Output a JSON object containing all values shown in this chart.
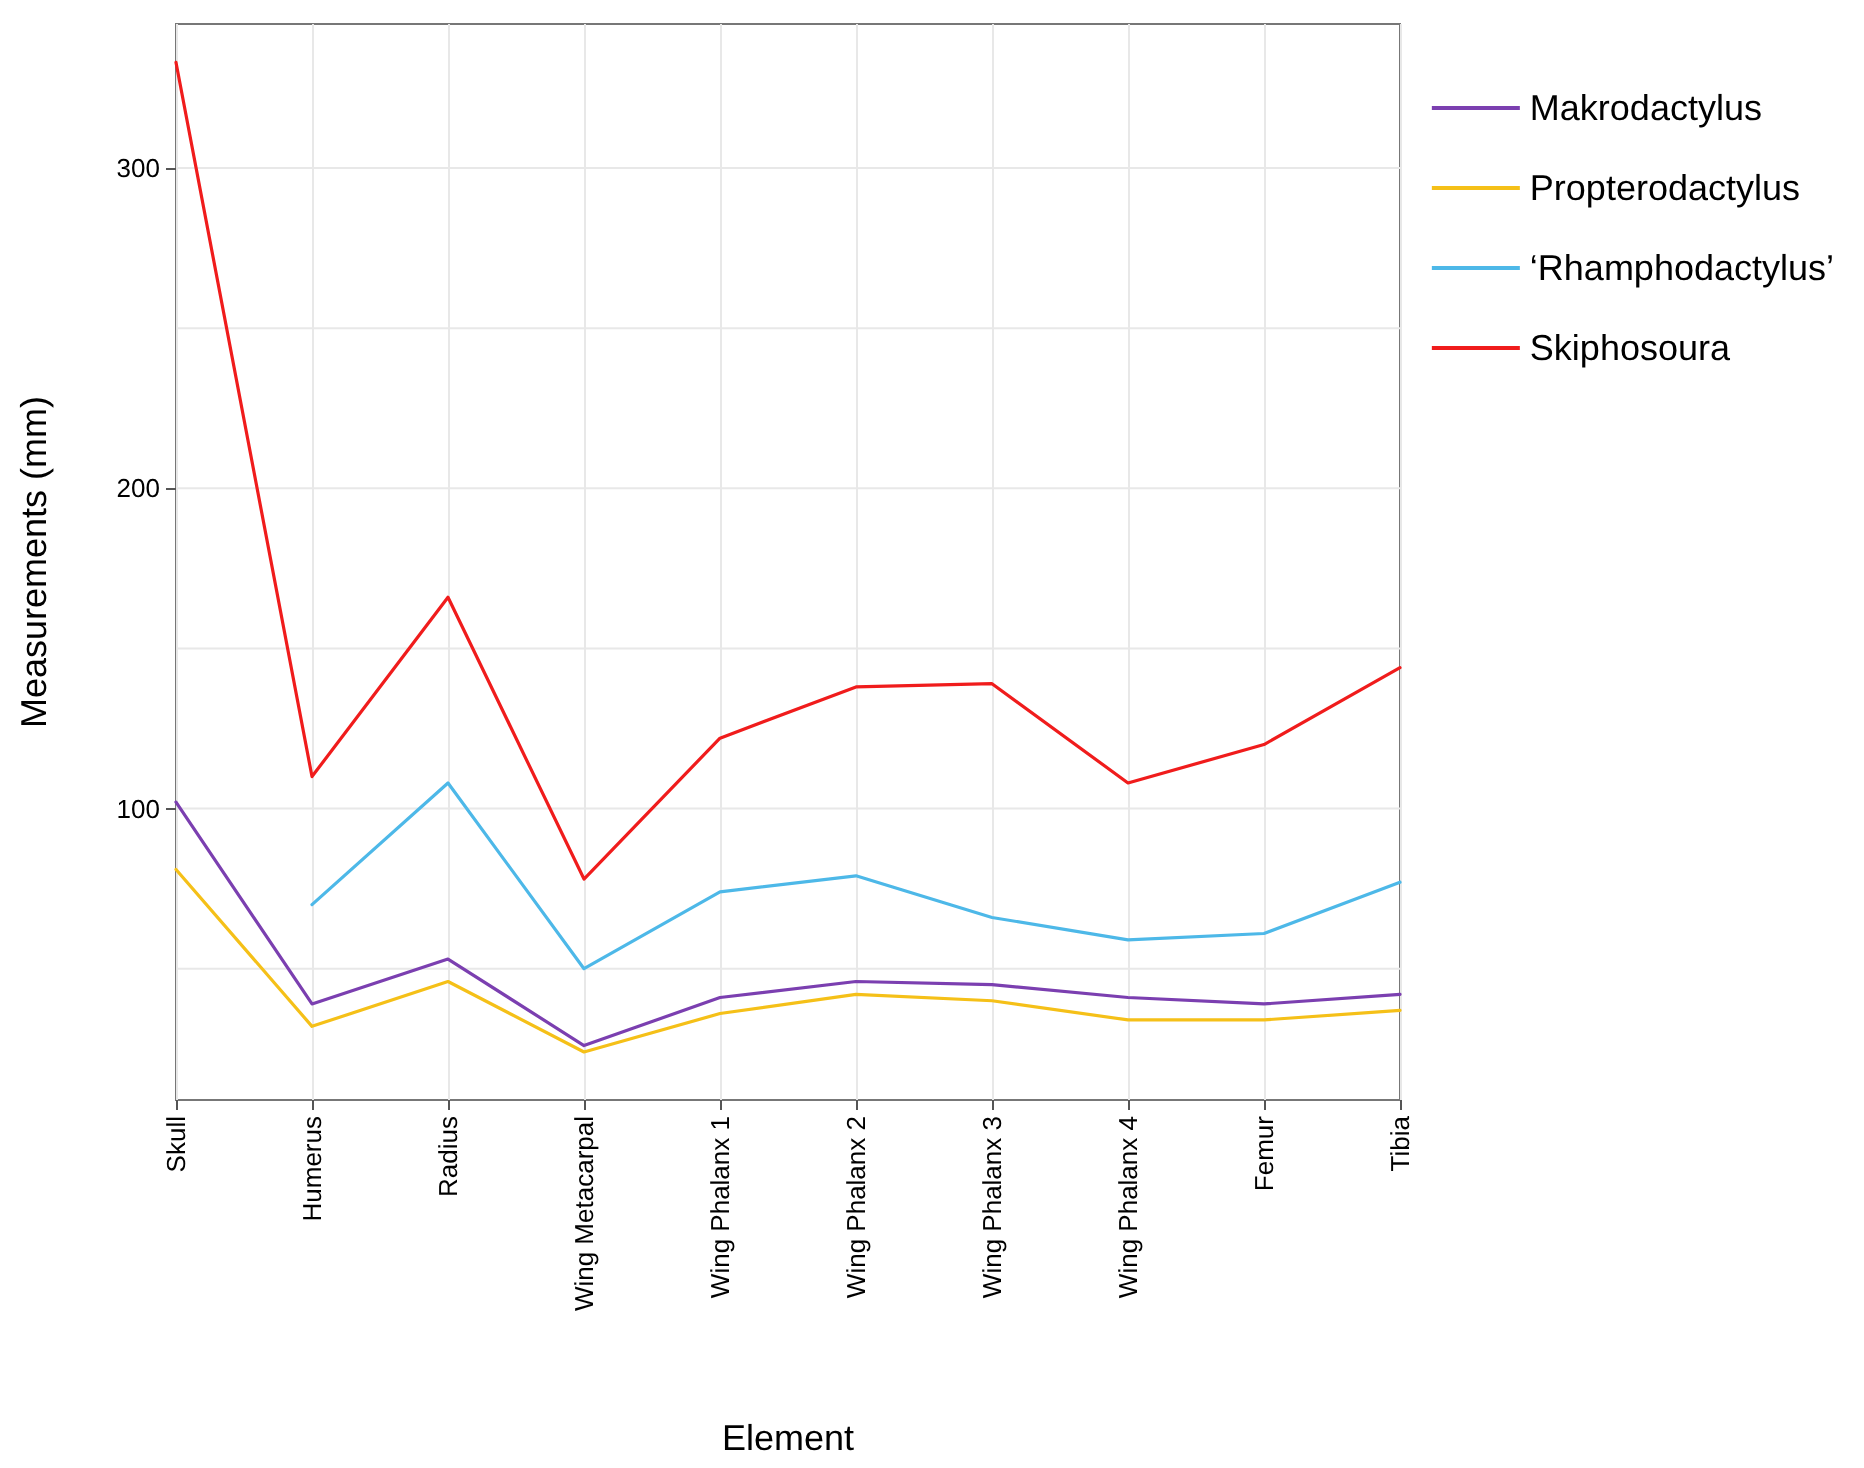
{
  "chart_data": {
    "type": "line",
    "xlabel": "Element",
    "ylabel": "Measurements (mm)",
    "categories": [
      "Skull",
      "Humerus",
      "Radius",
      "Wing Metacarpal",
      "Wing Phalanx 1",
      "Wing Phalanx 2",
      "Wing Phalanx 3",
      "Wing Phalanx 4",
      "Femur",
      "Tibia"
    ],
    "series": [
      {
        "name": "Makrodactylus",
        "color": "#7b3fb0",
        "values": [
          102,
          39,
          53,
          26,
          41,
          46,
          45,
          41,
          39,
          42
        ]
      },
      {
        "name": "Propterodactylus",
        "color": "#f5c018",
        "values": [
          81,
          32,
          46,
          24,
          36,
          42,
          40,
          34,
          34,
          37
        ]
      },
      {
        "name": "‘Rhamphodactylus’",
        "color": "#4db8e8",
        "values": [
          null,
          70,
          108,
          50,
          74,
          79,
          66,
          59,
          61,
          77
        ]
      },
      {
        "name": "Skiphosoura",
        "color": "#f01c1c",
        "values": [
          333,
          110,
          166,
          78,
          122,
          138,
          139,
          108,
          120,
          144
        ]
      }
    ],
    "ylim": [
      9,
      345
    ],
    "yticks": [
      {
        "value": 50,
        "label": null
      },
      100,
      {
        "value": 150,
        "label": null
      },
      200,
      {
        "value": 250,
        "label": null
      },
      300
    ],
    "grid": true,
    "legend": "right",
    "marker": "none",
    "line_style": "solid"
  }
}
